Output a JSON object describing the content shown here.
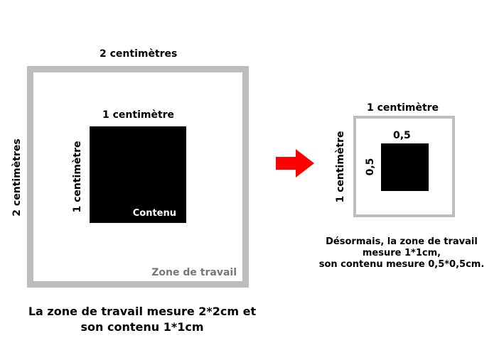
{
  "left": {
    "outer_width_label": "2 centimètres",
    "outer_height_label": "2 centimètres",
    "inner_width_label": "1 centimètre",
    "inner_height_label": "1 centimètre",
    "content_label": "Contenu",
    "area_label": "Zone de travail",
    "caption_line1": "La zone de travail mesure 2*2cm et",
    "caption_line2": "son contenu 1*1cm"
  },
  "right": {
    "outer_width_label": "1 centimètre",
    "outer_height_label": "1 centimètre",
    "inner_width_label": "0,5",
    "inner_height_label": "0,5",
    "caption_line1": "Désormais, la zone de travail",
    "caption_line2": "mesure 1*1cm,",
    "caption_line3": "son contenu mesure 0,5*0,5cm."
  },
  "colors": {
    "area_border": "#bdbdbd",
    "content_fill": "#000000",
    "arrow": "#ff0000",
    "area_label": "#777777"
  }
}
